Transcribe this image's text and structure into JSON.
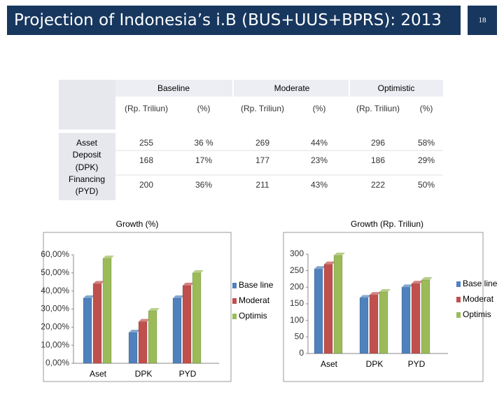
{
  "header": {
    "title": "Projection of Indonesia’s i.B (BUS+UUS+BPRS): 2013",
    "slide_number": "18"
  },
  "table": {
    "scenarios": [
      "Baseline",
      "Moderate",
      "Optimistic"
    ],
    "columns": [
      "(Rp. Triliun)",
      "(%)",
      "(Rp. Triliun)",
      "(%)",
      "(Rp. Triliun)",
      "(%)"
    ],
    "rows": [
      {
        "label": "Asset",
        "cells": [
          "255",
          "36 %",
          "269",
          "44%",
          "296",
          "58%"
        ]
      },
      {
        "label": "Deposit (DPK)",
        "cells": [
          "168",
          "17%",
          "177",
          "23%",
          "186",
          "29%"
        ]
      },
      {
        "label": "Financing (PYD)",
        "cells": [
          "200",
          "36%",
          "211",
          "43%",
          "222",
          "50%"
        ]
      }
    ]
  },
  "chart_data": [
    {
      "type": "bar",
      "title": "Growth (%)",
      "categories": [
        "Aset",
        "DPK",
        "PYD"
      ],
      "series": [
        {
          "name": "Base line",
          "color": "#4f81bd",
          "values": [
            36,
            17,
            36
          ]
        },
        {
          "name": "Moderat",
          "color": "#c0504d",
          "values": [
            44,
            23,
            43
          ]
        },
        {
          "name": "Optimis",
          "color": "#9bbb59",
          "values": [
            58,
            29,
            50
          ]
        }
      ],
      "ylim": [
        0,
        60
      ],
      "yticks": [
        {
          "value": 0,
          "label": "0,00%"
        },
        {
          "value": 10,
          "label": "10,00%"
        },
        {
          "value": 20,
          "label": "20,00%"
        },
        {
          "value": 30,
          "label": "30,00%"
        },
        {
          "value": 40,
          "label": "40,00%"
        },
        {
          "value": 50,
          "label": "50,00%"
        },
        {
          "value": 60,
          "label": "60,00%"
        }
      ],
      "legend": "right"
    },
    {
      "type": "bar",
      "title": "Growth (Rp. Triliun)",
      "categories": [
        "Aset",
        "DPK",
        "PYD"
      ],
      "series": [
        {
          "name": "Base line",
          "color": "#4f81bd",
          "values": [
            255,
            168,
            200
          ]
        },
        {
          "name": "Moderat",
          "color": "#c0504d",
          "values": [
            269,
            177,
            211
          ]
        },
        {
          "name": "Optimis",
          "color": "#9bbb59",
          "values": [
            296,
            186,
            222
          ]
        }
      ],
      "ylim": [
        0,
        300
      ],
      "yticks": [
        0,
        50,
        100,
        150,
        200,
        250,
        300
      ],
      "legend": "right"
    }
  ]
}
